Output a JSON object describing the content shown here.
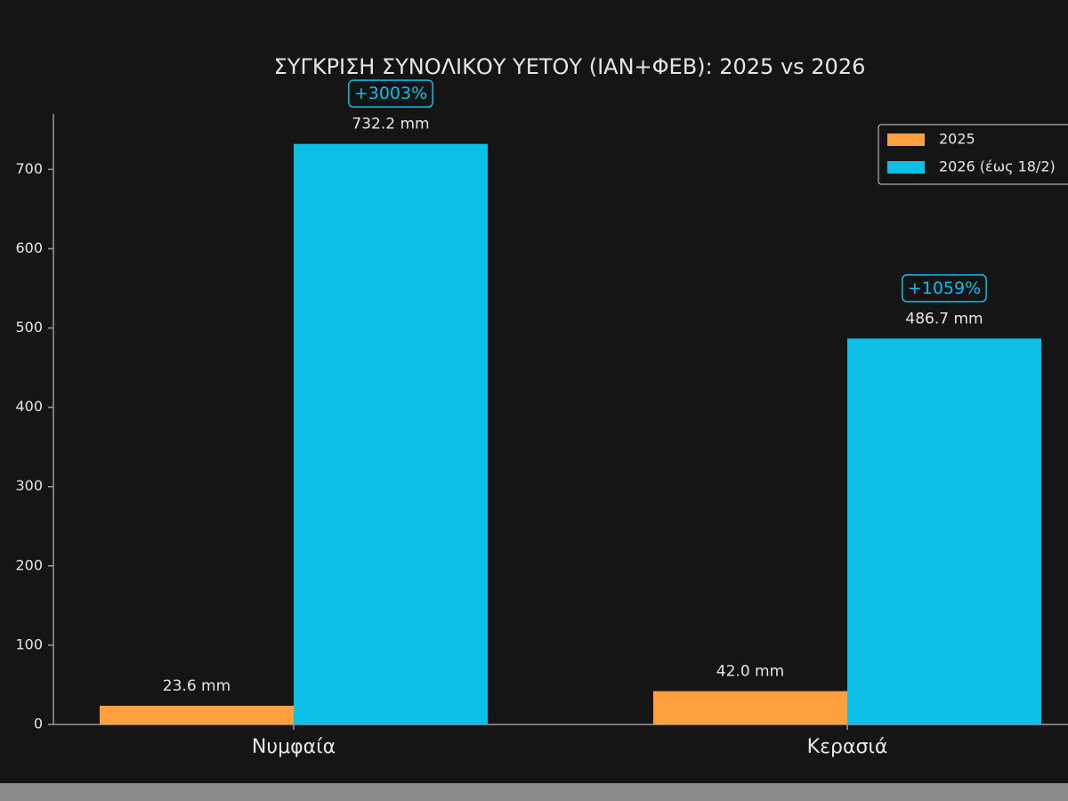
{
  "chart_data": {
    "type": "bar",
    "title": "ΣΥΓΚΡΙΣΗ ΣΥΝΟΛΙΚΟΥ ΥΕΤΟΥ (ΙΑΝ+ΦΕΒ): 2025 vs 2026",
    "categories": [
      "Νυμφαία",
      "Κερασιά"
    ],
    "series": [
      {
        "name": "2025",
        "color": "#ffa040",
        "values": [
          23.6,
          42.0
        ],
        "value_labels": [
          "23.6 mm",
          "42.0 mm"
        ]
      },
      {
        "name": "2026 (έως 18/2)",
        "color": "#0bbfe6",
        "values": [
          732.2,
          486.7
        ],
        "value_labels": [
          "732.2 mm",
          "486.7 mm"
        ]
      }
    ],
    "annotations": [
      "+3003%",
      "+1059%"
    ],
    "ylim": [
      0,
      770
    ],
    "yticks": [
      0,
      100,
      200,
      300,
      400,
      500,
      600,
      700
    ],
    "legend": "upper right"
  }
}
